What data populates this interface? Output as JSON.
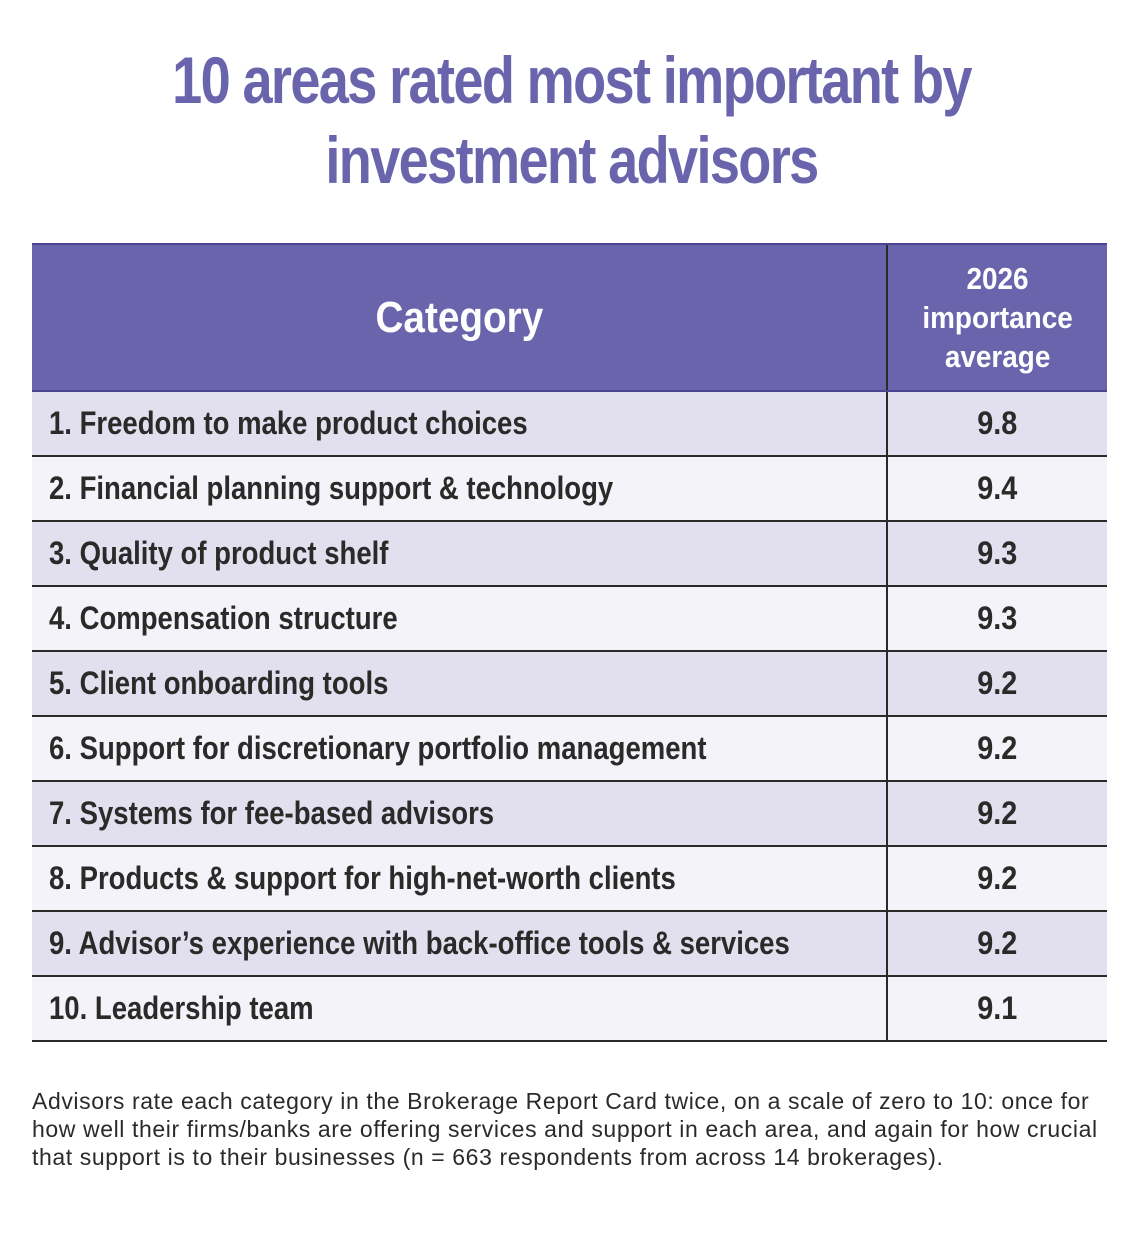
{
  "chart_data": {
    "type": "table",
    "title": "10 areas rated most important by investment advisors",
    "columns": [
      "Category",
      "2026 importance average"
    ],
    "header": {
      "category": "Category",
      "value_lines": [
        "2026",
        "importance",
        "average"
      ]
    },
    "rows": [
      {
        "category": "1.  Freedom to make product choices",
        "value": "9.8"
      },
      {
        "category": "2. Financial planning support & technology",
        "value": "9.4"
      },
      {
        "category": "3. Quality of product shelf",
        "value": "9.3"
      },
      {
        "category": "4. Compensation structure",
        "value": "9.3"
      },
      {
        "category": "5. Client onboarding tools",
        "value": "9.2"
      },
      {
        "category": "6. Support for discretionary portfolio management",
        "value": "9.2"
      },
      {
        "category": "7. Systems for fee-based advisors",
        "value": "9.2"
      },
      {
        "category": "8. Products & support for high-net-worth clients",
        "value": "9.2"
      },
      {
        "category": "9. Advisor’s experience with back-office tools & services",
        "value": "9.2"
      },
      {
        "category": "10. Leadership team",
        "value": "9.1"
      }
    ],
    "footnote": "Advisors rate each category in the Brokerage Report Card twice, on a scale of zero to 10: once for how well their firms/banks are offering services and support in each area, and again for how crucial that support is to their businesses (n = 663 respondents from across 14 brokerages)."
  },
  "title_lines": [
    "10 areas rated most important by",
    "investment advisors"
  ],
  "colors": {
    "accent": "#6a64ad",
    "row_odd": "#e2dfef",
    "row_even": "#f4f3f9",
    "text": "#2b2a28"
  }
}
